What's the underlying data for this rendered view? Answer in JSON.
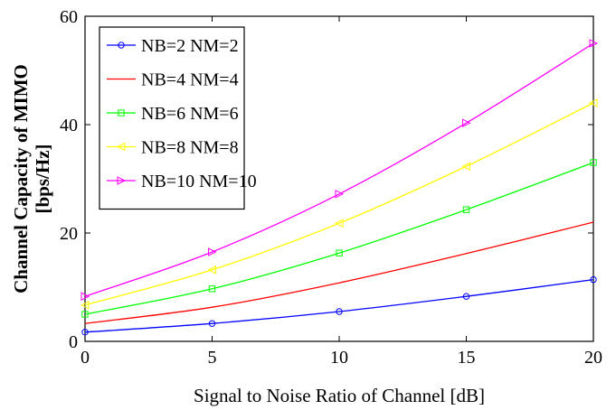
{
  "chart_data": {
    "type": "line",
    "title": "",
    "xlabel": "Signal to Noise Ratio of Channel [dB]",
    "ylabel_lines": [
      "Channel Capacity of MIMO",
      "[bps/Hz]"
    ],
    "x": [
      0,
      5,
      10,
      15,
      20
    ],
    "xlim": [
      0,
      20
    ],
    "ylim": [
      0,
      60
    ],
    "xticks": [
      0,
      5,
      10,
      15,
      20
    ],
    "yticks": [
      0,
      20,
      40,
      60
    ],
    "grid": false,
    "legend_position": "top-left",
    "series": [
      {
        "name": "NB=2 NM=2",
        "color": "#0000ff",
        "marker": "circle",
        "values": [
          1.7,
          3.3,
          5.5,
          8.3,
          11.4
        ]
      },
      {
        "name": "NB=4 NM=4",
        "color": "#ff0000",
        "marker": "none",
        "values": [
          3.3,
          6.3,
          10.8,
          16.2,
          22.0
        ]
      },
      {
        "name": "NB=6 NM=6",
        "color": "#00ff00",
        "marker": "square",
        "values": [
          5.0,
          9.7,
          16.3,
          24.3,
          33.0
        ]
      },
      {
        "name": "NB=8 NM=8",
        "color": "#ffff00",
        "marker": "triangle-left",
        "values": [
          6.7,
          13.2,
          21.8,
          32.3,
          44.0
        ]
      },
      {
        "name": "NB=10 NM=10",
        "color": "#ff00ff",
        "marker": "triangle-right",
        "values": [
          8.3,
          16.5,
          27.2,
          40.3,
          55.0
        ]
      }
    ]
  }
}
